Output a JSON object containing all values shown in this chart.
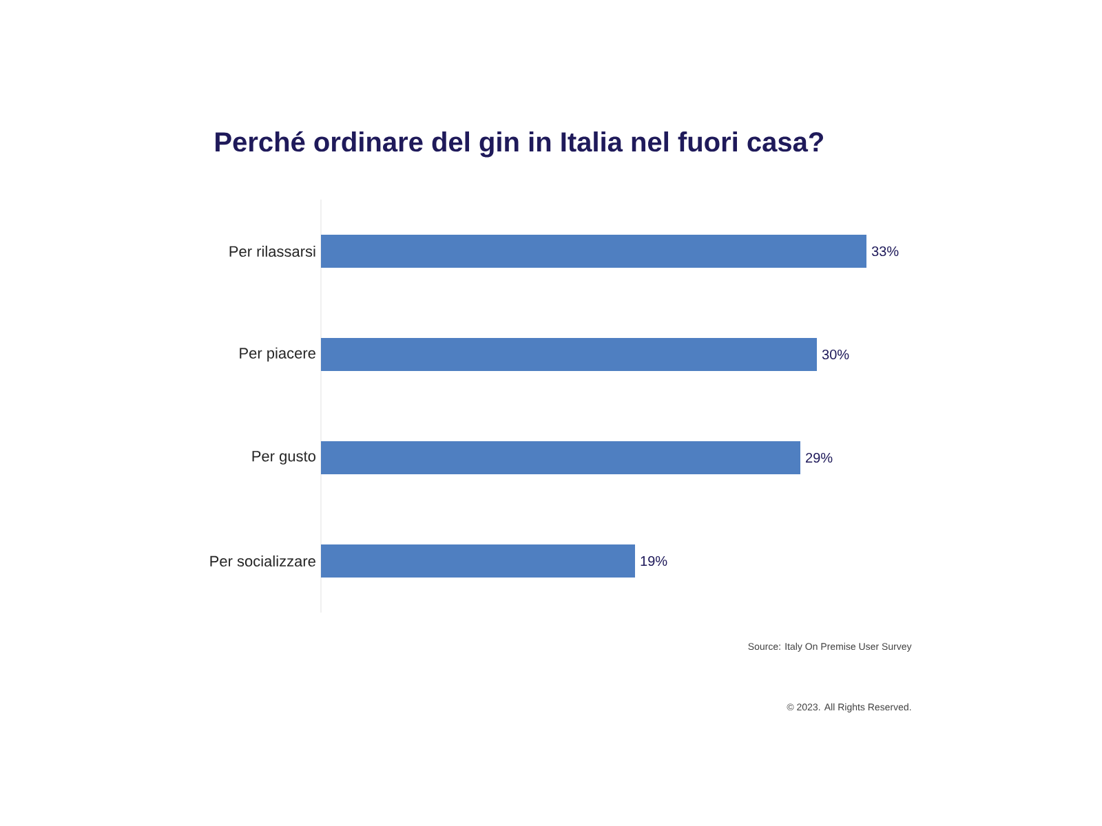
{
  "chart_data": {
    "type": "bar",
    "orientation": "horizontal",
    "title": "Perché ordinare del gin in Italia nel fuori casa?",
    "categories": [
      "Per rilassarsi",
      "Per piacere",
      "Per gusto",
      "Per socializzare"
    ],
    "values": [
      33,
      30,
      29,
      19
    ],
    "value_labels": [
      "33%",
      "30%",
      "29%",
      "19%"
    ],
    "color": "#4f7fc1",
    "annotations": [
      "Source: Italy On Premise User Survey",
      "© 2023. All Rights Reserved."
    ]
  }
}
